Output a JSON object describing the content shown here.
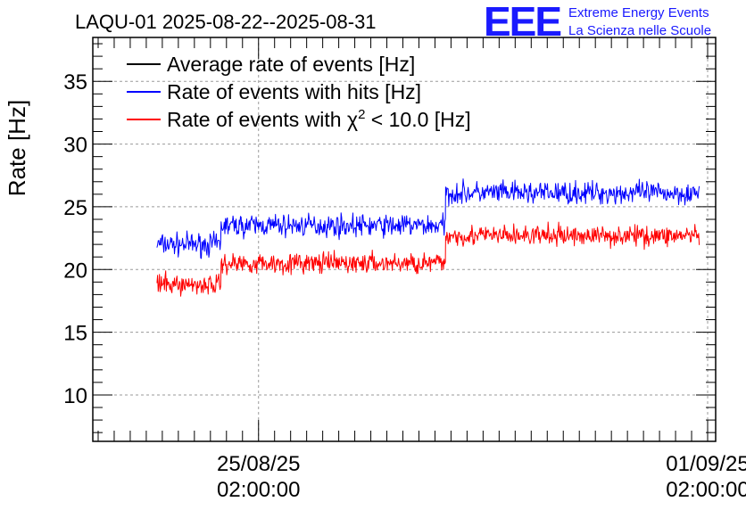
{
  "chart_data": {
    "type": "line",
    "title": "LAQU-01 2025-08-22--2025-08-31",
    "ylabel": "Rate [Hz]",
    "xlabel": "",
    "ylim": [
      6.3,
      38.5
    ],
    "yticks": [
      10,
      15,
      20,
      25,
      30,
      35
    ],
    "x_range": [
      "2025-08-22 12:00",
      "2025-09-01 05:00"
    ],
    "x_ticks": [
      {
        "date": "25/08/25",
        "time": "02:00:00",
        "x": "2025-08-25 02:00"
      },
      {
        "date": "01/09/25",
        "time": "02:00:00",
        "x": "2025-09-01 02:00"
      }
    ],
    "grid": true,
    "legend_position": "top-left",
    "series": [
      {
        "name": "Average rate of events [Hz]",
        "color": "#000000",
        "values": []
      },
      {
        "name": "Rate of events with hits [Hz]",
        "color": "#0000ff",
        "segments": [
          {
            "start": "2025-08-23 12:00",
            "end": "2025-08-24 12:00",
            "mean": 22.0,
            "spread": 1.3
          },
          {
            "start": "2025-08-24 12:00",
            "end": "2025-08-28 00:00",
            "mean": 23.5,
            "spread": 1.3
          },
          {
            "start": "2025-08-28 00:00",
            "end": "2025-08-31 23:00",
            "mean": 26.1,
            "spread": 1.3
          }
        ]
      },
      {
        "name_prefix": "Rate of events with ",
        "name_symbol": "χ",
        "name_sup": "2",
        "name_suffix": " < 10.0 [Hz]",
        "color": "#ff0000",
        "segments": [
          {
            "start": "2025-08-23 12:00",
            "end": "2025-08-24 12:00",
            "mean": 18.8,
            "spread": 1.2
          },
          {
            "start": "2025-08-24 12:00",
            "end": "2025-08-28 00:00",
            "mean": 20.5,
            "spread": 1.2
          },
          {
            "start": "2025-08-28 00:00",
            "end": "2025-08-31 23:00",
            "mean": 22.7,
            "spread": 1.2
          }
        ]
      }
    ]
  },
  "logo": {
    "text": "EEE",
    "line1": "Extreme Energy Events",
    "line2": "La Scienza nelle Scuole"
  }
}
